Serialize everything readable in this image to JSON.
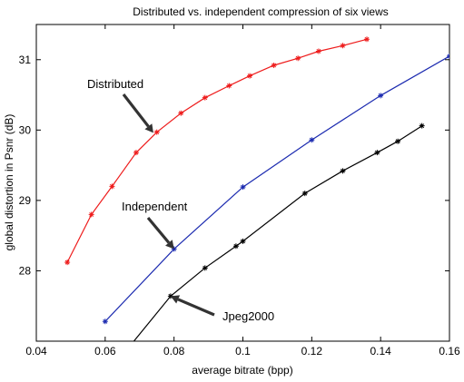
{
  "chart_data": {
    "type": "line",
    "title": "Distributed vs. independent compression of six views",
    "xlabel": "average bitrate (bpp)",
    "ylabel": "global distortion in Psnr (dB)",
    "xlim": [
      0.04,
      0.16
    ],
    "ylim": [
      27.0,
      31.5
    ],
    "xticks": [
      "0.04",
      "0.06",
      "0.08",
      "0.1",
      "0.12",
      "0.14",
      "0.16"
    ],
    "yticks": [
      "28",
      "29",
      "30",
      "31"
    ],
    "grid": false,
    "series": [
      {
        "name": "Distributed",
        "color": "#ee1c1c",
        "marker": "asterisk",
        "x": [
          0.049,
          0.056,
          0.062,
          0.069,
          0.075,
          0.082,
          0.089,
          0.096,
          0.102,
          0.109,
          0.116,
          0.122,
          0.129,
          0.136
        ],
        "y": [
          28.12,
          28.8,
          29.2,
          29.68,
          29.97,
          30.24,
          30.46,
          30.63,
          30.77,
          30.92,
          31.02,
          31.12,
          31.2,
          31.29
        ]
      },
      {
        "name": "Independent",
        "color": "#1c2bb0",
        "marker": "asterisk",
        "x": [
          0.06,
          0.08,
          0.1,
          0.12,
          0.14,
          0.16
        ],
        "y": [
          27.28,
          28.31,
          29.19,
          29.86,
          30.49,
          31.05
        ]
      },
      {
        "name": "Jpeg2000",
        "color": "#000000",
        "marker": "asterisk",
        "x": [
          0.065,
          0.079,
          0.089,
          0.098,
          0.1,
          0.118,
          0.129,
          0.139,
          0.145,
          0.152
        ],
        "y": [
          26.8,
          27.64,
          28.04,
          28.35,
          28.42,
          29.1,
          29.42,
          29.68,
          29.84,
          30.06
        ]
      }
    ],
    "annotations": [
      {
        "text": "Distributed",
        "series": "Distributed",
        "arrow_to": [
          0.074,
          29.96
        ]
      },
      {
        "text": "Independent",
        "series": "Independent",
        "arrow_to": [
          0.08,
          28.31
        ]
      },
      {
        "text": "Jpeg2000",
        "series": "Jpeg2000",
        "arrow_to": [
          0.079,
          27.64
        ]
      }
    ]
  }
}
